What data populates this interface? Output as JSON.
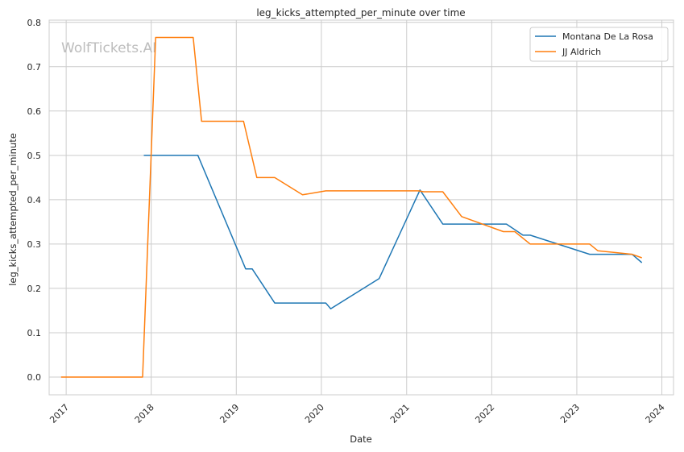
{
  "chart_data": {
    "type": "line",
    "title": "leg_kicks_attempted_per_minute over time",
    "xlabel": "Date",
    "ylabel": "leg_kicks_attempted_per_minute",
    "watermark": "WolfTickets.AI",
    "x_ticks": [
      "2017",
      "2018",
      "2019",
      "2020",
      "2021",
      "2022",
      "2023",
      "2024"
    ],
    "y_ticks": [
      "0.0",
      "0.1",
      "0.2",
      "0.3",
      "0.4",
      "0.5",
      "0.6",
      "0.7",
      "0.8"
    ],
    "xlim": [
      "2016-10-20",
      "2024-02-20"
    ],
    "ylim": [
      -0.04,
      0.805
    ],
    "grid": true,
    "legend_position": "top-right",
    "series": [
      {
        "name": "Montana De La Rosa",
        "color": "#1f77b4",
        "points": [
          [
            "2017-11-30",
            0.5
          ],
          [
            "2018-07-20",
            0.5
          ],
          [
            "2019-02-10",
            0.244
          ],
          [
            "2019-03-10",
            0.244
          ],
          [
            "2019-06-15",
            0.167
          ],
          [
            "2020-01-20",
            0.167
          ],
          [
            "2020-02-10",
            0.154
          ],
          [
            "2020-09-05",
            0.222
          ],
          [
            "2021-02-27",
            0.422
          ],
          [
            "2021-06-05",
            0.345
          ],
          [
            "2022-03-05",
            0.345
          ],
          [
            "2022-05-15",
            0.32
          ],
          [
            "2022-06-15",
            0.32
          ],
          [
            "2023-02-25",
            0.277
          ],
          [
            "2023-08-26",
            0.277
          ],
          [
            "2023-10-07",
            0.258
          ]
        ]
      },
      {
        "name": "JJ Aldrich",
        "color": "#ff7f0e",
        "points": [
          [
            "2016-12-10",
            0.0
          ],
          [
            "2017-11-25",
            0.0
          ],
          [
            "2018-01-20",
            0.766
          ],
          [
            "2018-06-30",
            0.766
          ],
          [
            "2018-08-05",
            0.577
          ],
          [
            "2019-02-01",
            0.577
          ],
          [
            "2019-03-30",
            0.45
          ],
          [
            "2019-06-15",
            0.45
          ],
          [
            "2019-10-12",
            0.411
          ],
          [
            "2020-01-20",
            0.42
          ],
          [
            "2021-02-20",
            0.42
          ],
          [
            "2021-03-15",
            0.418
          ],
          [
            "2021-06-05",
            0.418
          ],
          [
            "2021-08-25",
            0.362
          ],
          [
            "2022-02-20",
            0.328
          ],
          [
            "2022-04-10",
            0.328
          ],
          [
            "2022-06-15",
            0.3
          ],
          [
            "2023-02-25",
            0.3
          ],
          [
            "2023-04-01",
            0.285
          ],
          [
            "2023-08-26",
            0.277
          ],
          [
            "2023-10-07",
            0.269
          ]
        ]
      }
    ]
  }
}
